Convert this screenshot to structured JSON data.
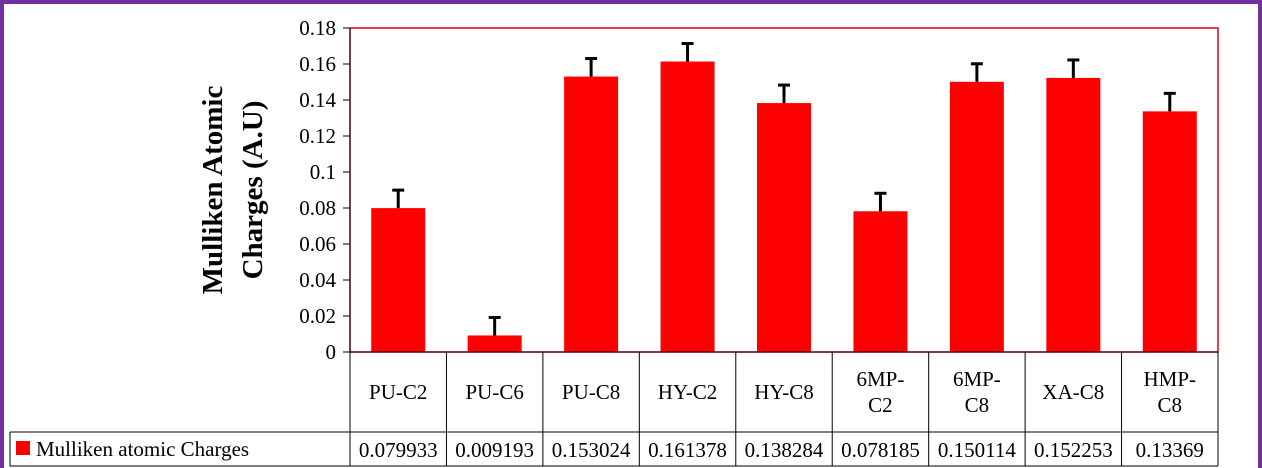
{
  "colors": {
    "frame": "#7030a0",
    "bar": "#ff0000",
    "plot_border": "#d0021b"
  },
  "chart_data": {
    "type": "bar",
    "title": "",
    "ylabel": "Mulliken Atomic Charges (A.U)",
    "ylabel_lines": [
      "Mulliken Atomic",
      "Charges (A.U)"
    ],
    "xlabel": "",
    "ylim": [
      0,
      0.18
    ],
    "yticks": [
      0,
      0.02,
      0.04,
      0.06,
      0.08,
      0.1,
      0.12,
      0.14,
      0.16,
      0.18
    ],
    "ytick_labels": [
      "0",
      "0.02",
      "0.04",
      "0.06",
      "0.08",
      "0.1",
      "0.12",
      "0.14",
      "0.16",
      "0.18"
    ],
    "categories": [
      "PU-C2",
      "PU-C6",
      "PU-C8",
      "HY-C2",
      "HY-C8",
      "6MP-C2",
      "6MP-C8",
      "XA-C8",
      "HMP-C8"
    ],
    "category_lines": [
      [
        "PU-C2"
      ],
      [
        "PU-C6"
      ],
      [
        "PU-C8"
      ],
      [
        "HY-C2"
      ],
      [
        "HY-C8"
      ],
      [
        "6MP-",
        "C2"
      ],
      [
        "6MP-",
        "C8"
      ],
      [
        "XA-C8"
      ],
      [
        "HMP-",
        "C8"
      ]
    ],
    "series": [
      {
        "name": "Mulliken atomic Charges",
        "color": "#ff0000",
        "values": [
          0.079933,
          0.009193,
          0.153024,
          0.161378,
          0.138284,
          0.078185,
          0.150114,
          0.152253,
          0.13369
        ],
        "value_labels": [
          "0.079933",
          "0.009193",
          "0.153024",
          "0.161378",
          "0.138284",
          "0.078185",
          "0.150114",
          "0.152253",
          "0.13369"
        ],
        "error": 0.01
      }
    ],
    "grid": false,
    "legend": "data-table",
    "data_table": true
  }
}
